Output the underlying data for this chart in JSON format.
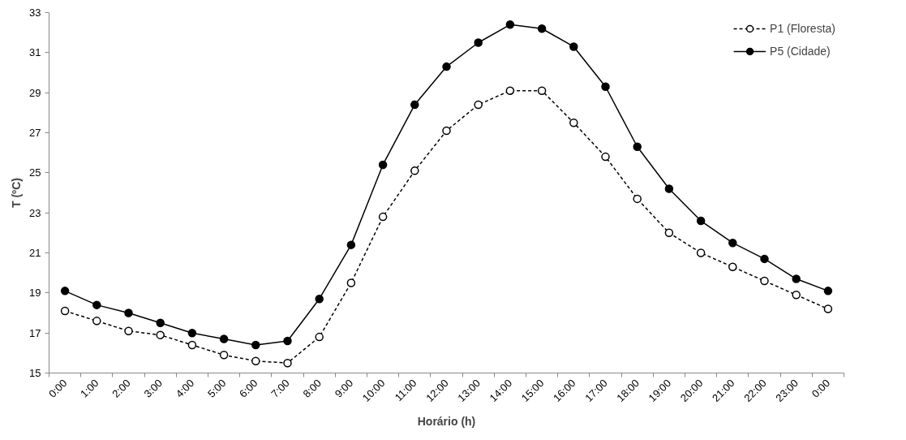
{
  "chart_data": {
    "type": "line",
    "xlabel": "Horário (h)",
    "ylabel": "T (ºC)",
    "categories": [
      "0:00",
      "1:00",
      "2:00",
      "3:00",
      "4:00",
      "5:00",
      "6:00",
      "7:00",
      "8:00",
      "9:00",
      "10:00",
      "11:00",
      "12:00",
      "13:00",
      "14:00",
      "15:00",
      "16:00",
      "17:00",
      "18:00",
      "19:00",
      "20:00",
      "21:00",
      "22:00",
      "23:00",
      "0:00"
    ],
    "series": [
      {
        "name": "P1 (Floresta)",
        "color": "#000000",
        "marker": "circle",
        "line_style": "dashed",
        "values": [
          18.1,
          17.6,
          17.1,
          16.9,
          16.4,
          15.9,
          15.6,
          15.5,
          16.8,
          19.5,
          22.8,
          25.1,
          27.1,
          28.4,
          29.1,
          29.1,
          27.5,
          25.8,
          23.7,
          22.0,
          21.0,
          20.3,
          19.6,
          18.9,
          18.2
        ]
      },
      {
        "name": "P5 (Cidade)",
        "color": "#000000",
        "marker": "circle",
        "line_style": "solid",
        "values": [
          19.1,
          18.4,
          18.0,
          17.5,
          17.0,
          16.7,
          16.4,
          16.6,
          18.7,
          21.4,
          25.4,
          28.4,
          30.3,
          31.5,
          32.4,
          32.2,
          31.3,
          29.3,
          26.3,
          24.2,
          22.6,
          21.5,
          20.7,
          19.7,
          19.1
        ]
      }
    ],
    "ylim": [
      15,
      33
    ],
    "yticks": [
      15,
      17,
      19,
      21,
      23,
      25,
      27,
      29,
      31,
      33
    ],
    "grid": false,
    "legend": "top right"
  }
}
